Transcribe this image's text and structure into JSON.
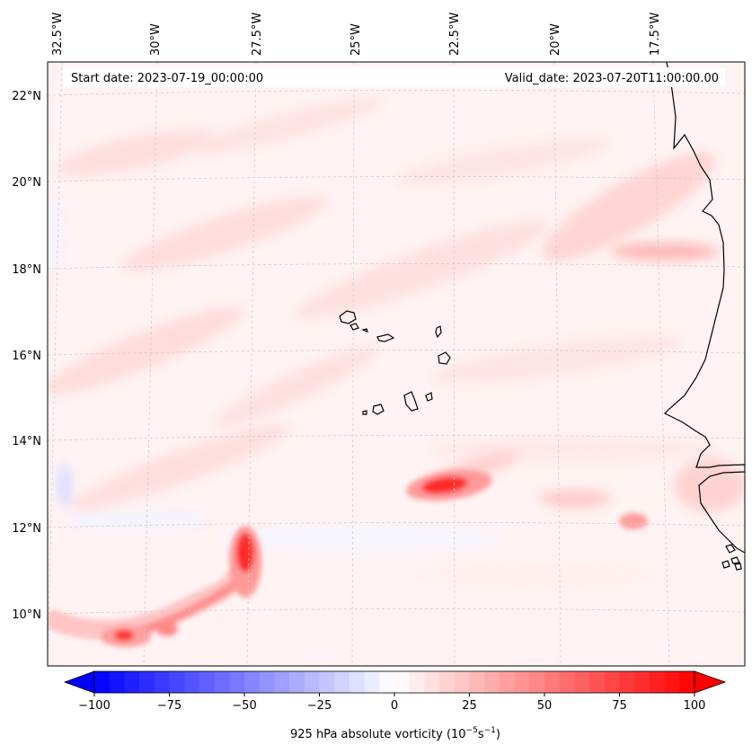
{
  "chart_data": {
    "type": "heatmap",
    "title": "",
    "start_label": "Start date: 2023-07-19_00:00:00",
    "valid_label": "Valid_date: 2023-07-20T11:00:00.00",
    "lon_ticks": [
      {
        "value": -32.5,
        "label": "32.5°W"
      },
      {
        "value": -30.0,
        "label": "30°W"
      },
      {
        "value": -27.5,
        "label": "27.5°W"
      },
      {
        "value": -25.0,
        "label": "25°W"
      },
      {
        "value": -22.5,
        "label": "22.5°W"
      },
      {
        "value": -20.0,
        "label": "20°W"
      },
      {
        "value": -17.5,
        "label": "17.5°W"
      }
    ],
    "lat_ticks": [
      {
        "value": 10,
        "label": "10°N"
      },
      {
        "value": 12,
        "label": "12°N"
      },
      {
        "value": 14,
        "label": "14°N"
      },
      {
        "value": 16,
        "label": "16°N"
      },
      {
        "value": 18,
        "label": "18°N"
      },
      {
        "value": 20,
        "label": "20°N"
      },
      {
        "value": 22,
        "label": "22°N"
      }
    ],
    "xlim": [
      -32.5,
      -15.0
    ],
    "ylim": [
      9.0,
      22.8
    ],
    "colorbar": {
      "label": "925 hPa absolute vorticity (10",
      "label_exp1": "−5",
      "label_mid": "s",
      "label_exp2": "−1",
      "label_end": ")",
      "min": -100,
      "max": 100,
      "cmap": "bwr",
      "extend": "both",
      "ticks": [
        {
          "value": -100,
          "label": "−100"
        },
        {
          "value": -75,
          "label": "−75"
        },
        {
          "value": -50,
          "label": "−50"
        },
        {
          "value": -25,
          "label": "−25"
        },
        {
          "value": 0,
          "label": "0"
        },
        {
          "value": 25,
          "label": "25"
        },
        {
          "value": 50,
          "label": "50"
        },
        {
          "value": 75,
          "label": "75"
        },
        {
          "value": 100,
          "label": "100"
        }
      ]
    },
    "background_value": 5,
    "features": [
      {
        "name": "cyclonic-vortex-west-africa-coast",
        "lon": -22.3,
        "lat": 13.0,
        "peak": 95
      },
      {
        "name": "vorticity-maximum-southwest",
        "lon": -27.3,
        "lat": 11.5,
        "peak": 100
      },
      {
        "name": "vorticity-filament-south",
        "lon": -28.5,
        "lat": 10.2,
        "peak": 40
      },
      {
        "name": "vorticity-blob-far-southwest",
        "lon": -31.0,
        "lat": 9.4,
        "peak": 85
      },
      {
        "name": "vorticity-blob-southeast",
        "lon": -17.8,
        "lat": 12.1,
        "peak": 35
      },
      {
        "name": "coastal-band-north",
        "lon": -18.0,
        "lat": 18.4,
        "peak": 25
      }
    ],
    "grid": true
  }
}
